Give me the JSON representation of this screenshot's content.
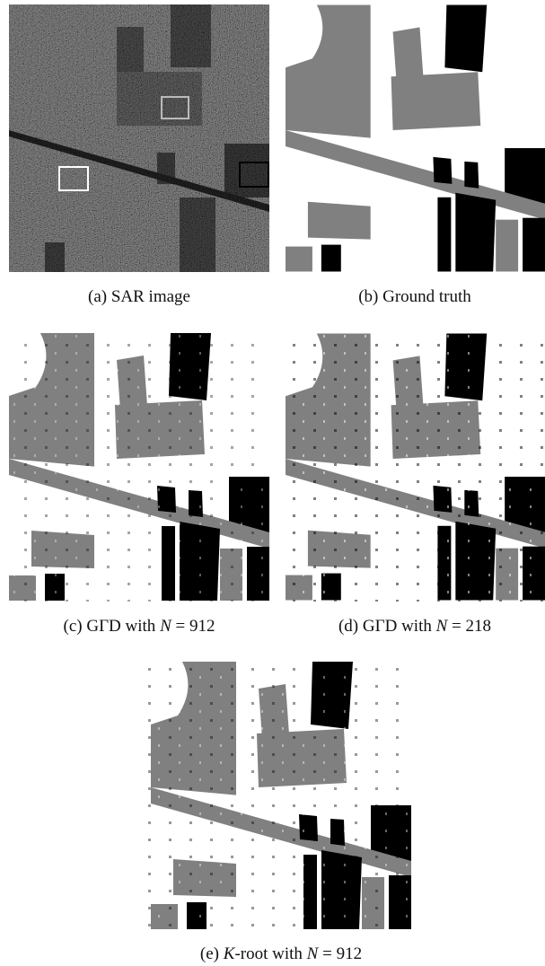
{
  "figure": {
    "panels": [
      {
        "caption": [
          "(a) SAR image"
        ]
      },
      {
        "caption": [
          "(b) Ground truth"
        ]
      },
      {
        "caption": [
          "(c) GΓD with ",
          "N",
          " = 912"
        ]
      },
      {
        "caption": [
          "(d) GΓD with ",
          "N",
          " = 218"
        ]
      },
      {
        "caption": [
          "(e) ",
          "K",
          "-root with ",
          "N",
          " = 912"
        ]
      }
    ]
  }
}
